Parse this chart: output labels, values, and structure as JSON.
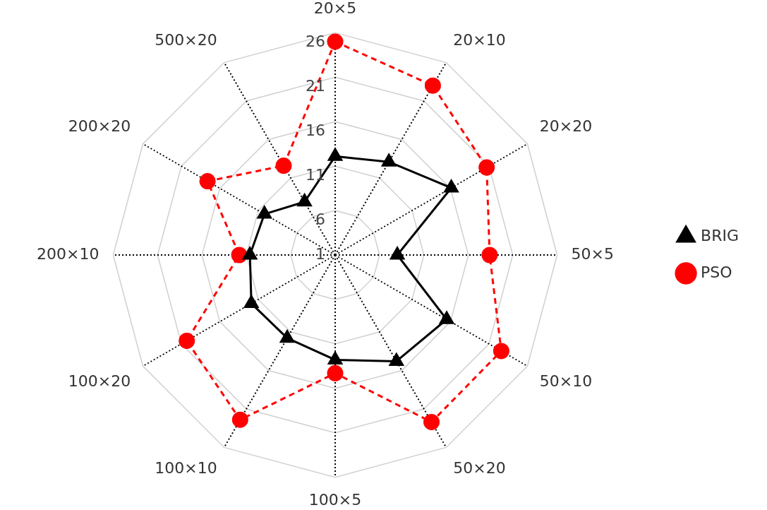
{
  "chart_data": {
    "type": "radar",
    "categories": [
      "20×5",
      "20×10",
      "20×20",
      "50×5",
      "50×10",
      "50×20",
      "100×5",
      "100×10",
      "100×20",
      "200×10",
      "200×20",
      "500×20"
    ],
    "series": [
      {
        "name": "BRIG",
        "color": "#000000",
        "marker": "triangle",
        "line_style": "solid",
        "values": [
          12.1,
          13.1,
          16.1,
          8.0,
          15.5,
          14.8,
          12.8,
          11.8,
          11.9,
          10.6,
          10.2,
          7.9
        ]
      },
      {
        "name": "PSO",
        "color": "#ff0000",
        "marker": "circle",
        "line_style": "dashed",
        "values": [
          25,
          23,
          20.7,
          18.4,
          22.6,
          22.7,
          14.3,
          22.4,
          20.3,
          11.8,
          17.6,
          12.6
        ]
      }
    ],
    "ylim": [
      1,
      26
    ],
    "yticks": [
      1,
      6,
      11,
      16,
      21,
      26
    ],
    "grid": true,
    "legend": "right"
  }
}
